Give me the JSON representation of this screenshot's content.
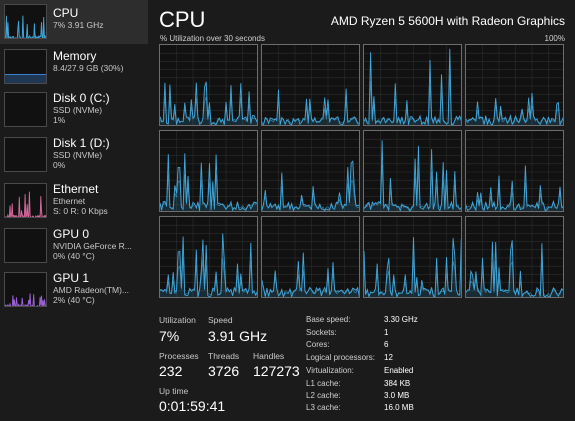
{
  "sidebar": {
    "items": [
      {
        "name": "CPU",
        "line1": "7% 3.91 GHz",
        "line2": "",
        "graph_color": "#41a6d9"
      },
      {
        "name": "Memory",
        "line1": "8.4/27.9 GB (30%)",
        "line2": "",
        "graph_color": "#3b7fd1"
      },
      {
        "name": "Disk 0 (C:)",
        "line1": "SSD (NVMe)",
        "line2": "1%",
        "graph_color": "#58b85a"
      },
      {
        "name": "Disk 1 (D:)",
        "line1": "SSD (NVMe)",
        "line2": "0%",
        "graph_color": "#58b85a"
      },
      {
        "name": "Ethernet",
        "line1": "Ethernet",
        "line2": "S: 0 R: 0 Kbps",
        "graph_color": "#d46a9c"
      },
      {
        "name": "GPU 0",
        "line1": "NVIDIA GeForce R...",
        "line2": "0% (40 °C)",
        "graph_color": "#9a62d4"
      },
      {
        "name": "GPU 1",
        "line1": "AMD Radeon(TM)...",
        "line2": "2% (40 °C)",
        "graph_color": "#9a62d4"
      }
    ]
  },
  "header": {
    "title": "CPU",
    "model": "AMD Ryzen 5 5600H with Radeon Graphics",
    "util_label": "% Utilization over 30 seconds",
    "util_max": "100%"
  },
  "graph_color": "#41a6d9",
  "stats": {
    "utilization_label": "Utilization",
    "utilization_value": "7%",
    "speed_label": "Speed",
    "speed_value": "3.91 GHz",
    "processes_label": "Processes",
    "processes_value": "232",
    "threads_label": "Threads",
    "threads_value": "3726",
    "handles_label": "Handles",
    "handles_value": "127273",
    "uptime_label": "Up time",
    "uptime_value": "0:01:59:41"
  },
  "specs": [
    {
      "key": "Base speed:",
      "value": "3.30 GHz"
    },
    {
      "key": "Sockets:",
      "value": "1"
    },
    {
      "key": "Cores:",
      "value": "6"
    },
    {
      "key": "Logical processors:",
      "value": "12"
    },
    {
      "key": "Virtualization:",
      "value": "Enabled"
    },
    {
      "key": "L1 cache:",
      "value": "384 KB"
    },
    {
      "key": "L2 cache:",
      "value": "3.0 MB"
    },
    {
      "key": "L3 cache:",
      "value": "16.0 MB"
    }
  ]
}
